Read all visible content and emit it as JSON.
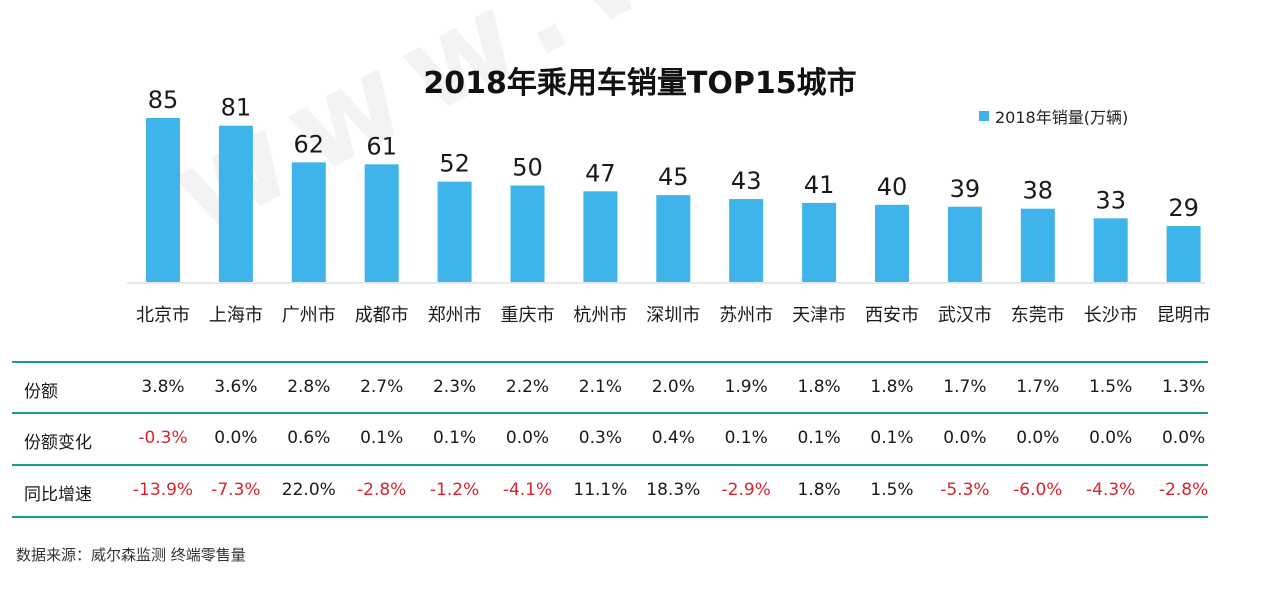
{
  "watermark": "www.way-s.cn",
  "source": "数据来源：威尔森监测 终端零售量",
  "chart_data": {
    "type": "bar",
    "title": "2018年乘用车销量TOP15城市",
    "legend": "2018年销量(万辆)",
    "legend_position": "top-right",
    "color": "#3fb4ea",
    "categories": [
      "北京市",
      "上海市",
      "广州市",
      "成都市",
      "郑州市",
      "重庆市",
      "杭州市",
      "深圳市",
      "苏州市",
      "天津市",
      "西安市",
      "武汉市",
      "东莞市",
      "长沙市",
      "昆明市"
    ],
    "series": [
      {
        "name": "2018年销量(万辆)",
        "values": [
          85,
          81,
          62,
          61,
          52,
          50,
          47,
          45,
          43,
          41,
          40,
          39,
          38,
          33,
          29
        ]
      }
    ],
    "ylim": [
      0,
      85
    ],
    "grid": false
  },
  "table": {
    "rows": [
      {
        "label": "份额",
        "values": [
          "3.8%",
          "3.6%",
          "2.8%",
          "2.7%",
          "2.3%",
          "2.2%",
          "2.1%",
          "2.0%",
          "1.9%",
          "1.8%",
          "1.8%",
          "1.7%",
          "1.7%",
          "1.5%",
          "1.3%"
        ]
      },
      {
        "label": "份额变化",
        "values": [
          "-0.3%",
          "0.0%",
          "0.6%",
          "0.1%",
          "0.1%",
          "0.0%",
          "0.3%",
          "0.4%",
          "0.1%",
          "0.1%",
          "0.1%",
          "0.0%",
          "0.0%",
          "0.0%",
          "0.0%"
        ]
      },
      {
        "label": "同比增速",
        "values": [
          "-13.9%",
          "-7.3%",
          "22.0%",
          "-2.8%",
          "-1.2%",
          "-4.1%",
          "11.1%",
          "18.3%",
          "-2.9%",
          "1.8%",
          "1.5%",
          "-5.3%",
          "-6.0%",
          "-4.3%",
          "-2.8%"
        ]
      }
    ],
    "negative_color": "#d9232e",
    "rule_color": "#1a9c8a"
  }
}
